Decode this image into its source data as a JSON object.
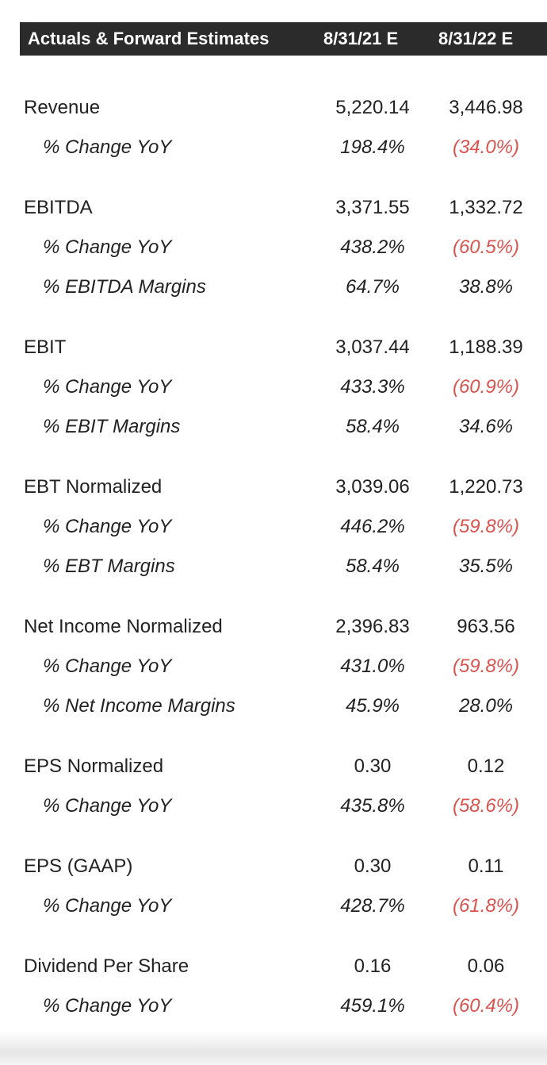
{
  "table": {
    "header": [
      "Actuals & Forward Estimates",
      "8/31/21 E",
      "8/31/22 E"
    ],
    "sections": [
      {
        "rows": [
          [
            "Revenue",
            "5,220.14",
            "3,446.98"
          ],
          [
            "% Change YoY",
            "198.4%",
            "(34.0%)"
          ]
        ]
      },
      {
        "rows": [
          [
            "EBITDA",
            "3,371.55",
            "1,332.72"
          ],
          [
            "% Change YoY",
            "438.2%",
            "(60.5%)"
          ],
          [
            "% EBITDA Margins",
            "64.7%",
            "38.8%"
          ]
        ]
      },
      {
        "rows": [
          [
            "EBIT",
            "3,037.44",
            "1,188.39"
          ],
          [
            "% Change YoY",
            "433.3%",
            "(60.9%)"
          ],
          [
            "% EBIT Margins",
            "58.4%",
            "34.6%"
          ]
        ]
      },
      {
        "rows": [
          [
            "EBT Normalized",
            "3,039.06",
            "1,220.73"
          ],
          [
            "% Change YoY",
            "446.2%",
            "(59.8%)"
          ],
          [
            "% EBT Margins",
            "58.4%",
            "35.5%"
          ]
        ]
      },
      {
        "rows": [
          [
            "Net Income Normalized",
            "2,396.83",
            "963.56"
          ],
          [
            "% Change YoY",
            "431.0%",
            "(59.8%)"
          ],
          [
            "% Net Income Margins",
            "45.9%",
            "28.0%"
          ]
        ]
      },
      {
        "rows": [
          [
            "EPS Normalized",
            "0.30",
            "0.12"
          ],
          [
            "% Change YoY",
            "435.8%",
            "(58.6%)"
          ]
        ]
      },
      {
        "rows": [
          [
            "EPS (GAAP)",
            "0.30",
            "0.11"
          ],
          [
            "% Change YoY",
            "428.7%",
            "(61.8%)"
          ]
        ]
      },
      {
        "rows": [
          [
            "Dividend Per Share",
            "0.16",
            "0.06"
          ],
          [
            "% Change YoY",
            "459.1%",
            "(60.4%)"
          ]
        ]
      }
    ]
  }
}
